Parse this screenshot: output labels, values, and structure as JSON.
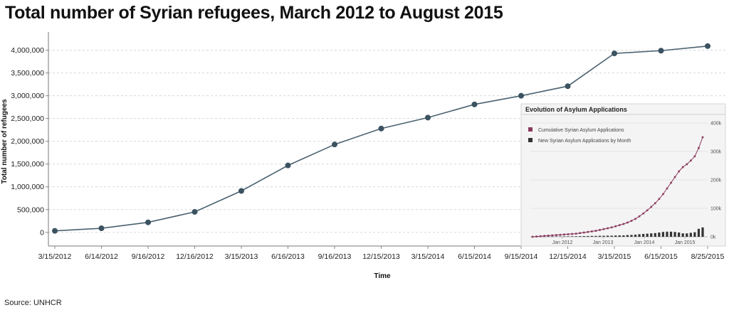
{
  "title": "Total number of Syrian refugees, March 2012 to August 2015",
  "source": "Source: UNHCR",
  "colors": {
    "line": "#4a6270",
    "marker": "#3b5260",
    "inset_cumulative": "#8a3a5e",
    "inset_monthly": "#333333"
  },
  "chart_data": [
    {
      "type": "line",
      "title": "Total number of Syrian refugees, March 2012 to August 2015",
      "xlabel": "Time",
      "ylabel": "Total number of refugees",
      "categories": [
        "3/15/2012",
        "6/14/2012",
        "9/16/2012",
        "12/16/2012",
        "3/15/2013",
        "6/16/2013",
        "9/16/2013",
        "12/15/2013",
        "3/15/2014",
        "6/15/2014",
        "9/15/2014",
        "12/15/2014",
        "3/15/2015",
        "6/15/2015",
        "8/25/2015"
      ],
      "values": [
        33000,
        90000,
        220000,
        450000,
        910000,
        1470000,
        1930000,
        2280000,
        2520000,
        2810000,
        3000000,
        3210000,
        3930000,
        3990000,
        4090000
      ],
      "ylim": [
        -300000,
        4400000
      ],
      "yticks": [
        0,
        500000,
        1000000,
        1500000,
        2000000,
        2500000,
        3000000,
        3500000,
        4000000
      ],
      "ytick_labels": [
        "0",
        "500,000",
        "1,000,000",
        "1,500,000",
        "2,000,000",
        "2,500,000",
        "3,000,000",
        "3,500,000",
        "4,000,000"
      ],
      "grid": true
    },
    {
      "type": "line",
      "title": "Evolution of Asylum Applications",
      "legend_position": "top-left",
      "series": [
        {
          "name": "Cumulative Syrian Asylum Applications",
          "kind": "line-markers",
          "values": [
            0,
            1,
            2,
            3,
            4,
            5,
            6,
            7,
            8,
            9,
            10,
            11,
            13,
            15,
            17,
            19,
            21,
            24,
            27,
            30,
            33,
            37,
            41,
            45,
            50,
            56,
            63,
            72,
            82,
            93,
            105,
            118,
            133,
            150,
            170,
            190,
            210,
            230,
            245,
            255,
            268,
            283,
            312,
            350
          ]
        },
        {
          "name": "New Syrian Asylum Applications by Month",
          "kind": "bar",
          "values": [
            0.5,
            0.6,
            0.8,
            0.8,
            1,
            1,
            1.2,
            1.2,
            1.5,
            1.6,
            1.8,
            2,
            2.2,
            2.5,
            2.7,
            3,
            3,
            3.5,
            3.5,
            4,
            4,
            4.5,
            5,
            5,
            6,
            6.5,
            7.5,
            9,
            10,
            11,
            12,
            13,
            15,
            17,
            18,
            18,
            17,
            15,
            12,
            12,
            14,
            16,
            28,
            33
          ]
        }
      ],
      "x_tick_labels": [
        "Jan 2012",
        "Jan 2013",
        "Jan 2014",
        "Jan 2015"
      ],
      "y_tick_labels": [
        "400k",
        "300k",
        "200k",
        "100k",
        "0k"
      ],
      "ylim": [
        0,
        400
      ]
    }
  ]
}
